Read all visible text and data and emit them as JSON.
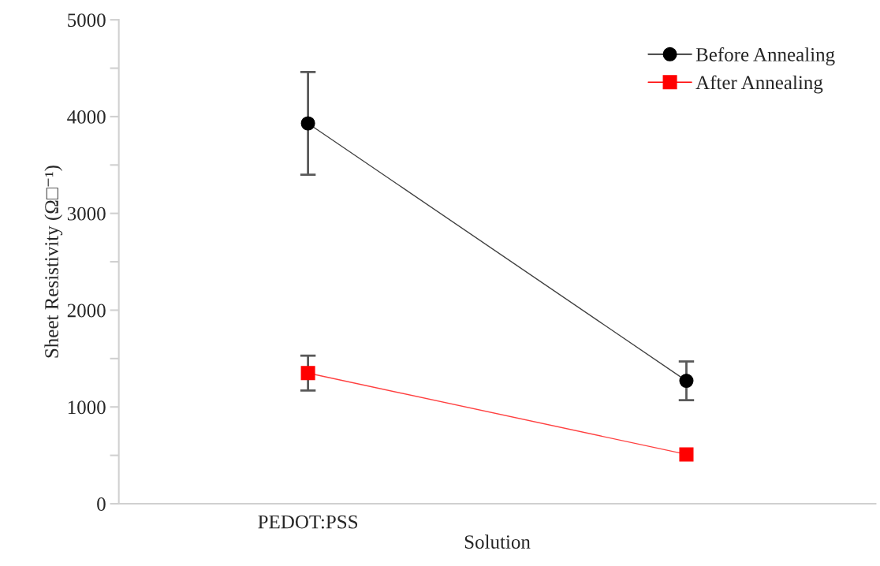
{
  "chart_data": {
    "type": "line",
    "xlabel": "Solution",
    "ylabel": "Sheet Resistivity (Ω□⁻¹)",
    "categories": [
      "PEDOT:PSS",
      null
    ],
    "series": [
      {
        "name": "Before Annealing",
        "color": "#000000",
        "marker": "circle",
        "values": [
          3930,
          1270
        ],
        "errors": [
          530,
          200
        ]
      },
      {
        "name": "After Annealing",
        "color": "#ff0000",
        "marker": "square",
        "values": [
          1350,
          510
        ],
        "errors": [
          180,
          null
        ]
      }
    ],
    "ylim": [
      0,
      5000
    ],
    "yticks": [
      0,
      {
        "value": 500,
        "label": null
      },
      1000,
      {
        "value": 1500,
        "label": null
      },
      2000,
      {
        "value": 2500,
        "label": null
      },
      3000,
      {
        "value": 3500,
        "label": null
      },
      4000,
      {
        "value": 4500,
        "label": null
      },
      5000
    ],
    "grid": false,
    "legend": "top right"
  }
}
